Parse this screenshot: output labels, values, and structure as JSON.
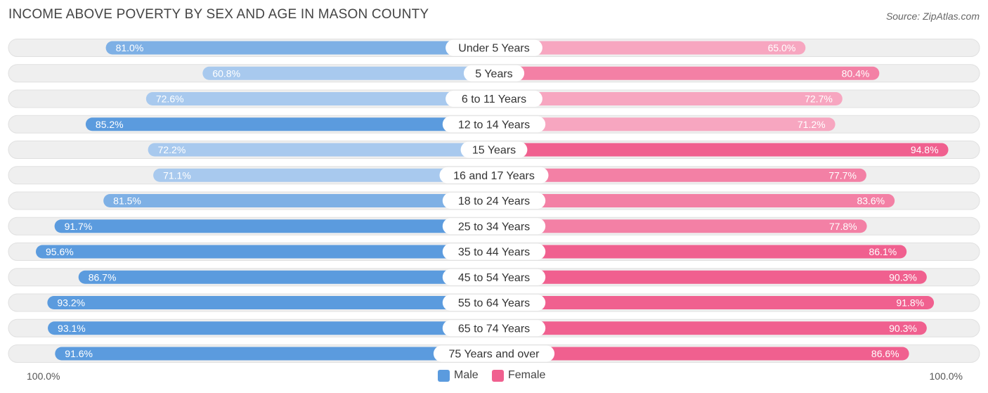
{
  "title": "INCOME ABOVE POVERTY BY SEX AND AGE IN MASON COUNTY",
  "source": "Source: ZipAtlas.com",
  "colors": {
    "male_strong": "#5b9bde",
    "male_light": "#a8c9ee",
    "female_strong": "#f0608f",
    "female_light": "#f7a6c0",
    "track": "#efefef",
    "track_border": "#e0e0e0"
  },
  "chart_data": {
    "type": "bar",
    "orientation": "horizontal-diverging",
    "categories": [
      "Under 5 Years",
      "5 Years",
      "6 to 11 Years",
      "12 to 14 Years",
      "15 Years",
      "16 and 17 Years",
      "18 to 24 Years",
      "25 to 34 Years",
      "35 to 44 Years",
      "45 to 54 Years",
      "55 to 64 Years",
      "65 to 74 Years",
      "75 Years and over"
    ],
    "series": [
      {
        "name": "Male",
        "values": [
          81.0,
          60.8,
          72.6,
          85.2,
          72.2,
          71.1,
          81.5,
          91.7,
          95.6,
          86.7,
          93.2,
          93.1,
          91.6
        ]
      },
      {
        "name": "Female",
        "values": [
          65.0,
          80.4,
          72.7,
          71.2,
          94.8,
          77.7,
          83.6,
          77.8,
          86.1,
          90.3,
          91.8,
          90.3,
          86.6
        ]
      }
    ],
    "value_labels": {
      "male": [
        "81.0%",
        "60.8%",
        "72.6%",
        "85.2%",
        "72.2%",
        "71.1%",
        "81.5%",
        "91.7%",
        "95.6%",
        "86.7%",
        "93.2%",
        "93.1%",
        "91.6%"
      ],
      "female": [
        "65.0%",
        "80.4%",
        "72.7%",
        "71.2%",
        "94.8%",
        "77.7%",
        "83.6%",
        "77.8%",
        "86.1%",
        "90.3%",
        "91.8%",
        "90.3%",
        "86.6%"
      ]
    },
    "xlim": [
      0,
      100
    ],
    "axis_left_label": "100.0%",
    "axis_right_label": "100.0%",
    "legend": [
      "Male",
      "Female"
    ],
    "legend_position": "bottom-center"
  }
}
